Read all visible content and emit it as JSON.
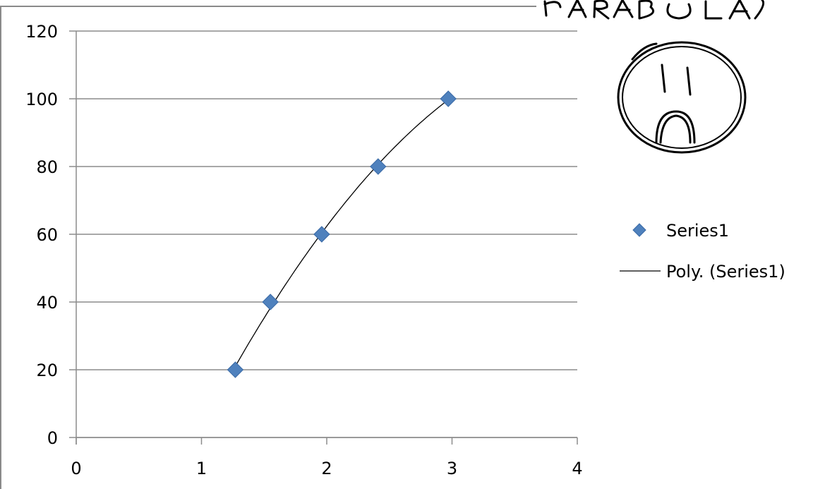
{
  "chart_data": {
    "type": "scatter",
    "title": "",
    "xlabel": "",
    "ylabel": "",
    "xlim": [
      0,
      4
    ],
    "ylim": [
      0,
      120
    ],
    "x_ticks": [
      "0",
      "1",
      "2",
      "3",
      "4"
    ],
    "y_ticks": [
      "0",
      "20",
      "40",
      "60",
      "80",
      "100",
      "120"
    ],
    "grid": "horizontal",
    "legend_position": "right",
    "series": [
      {
        "name": "Series1",
        "marker": "diamond",
        "color": "#4F81BD",
        "points": [
          {
            "x": 1.27,
            "y": 20
          },
          {
            "x": 1.55,
            "y": 40
          },
          {
            "x": 1.96,
            "y": 60
          },
          {
            "x": 2.41,
            "y": 80
          },
          {
            "x": 2.97,
            "y": 100
          }
        ]
      }
    ],
    "trendline": {
      "name": "Poly. (Series1)",
      "type": "polynomial",
      "color": "#000000"
    },
    "legend": [
      "Series1",
      "Poly. (Series1)"
    ]
  },
  "annotation": {
    "handwritten_text": "PARABOLA",
    "drawing": "sad-face"
  }
}
